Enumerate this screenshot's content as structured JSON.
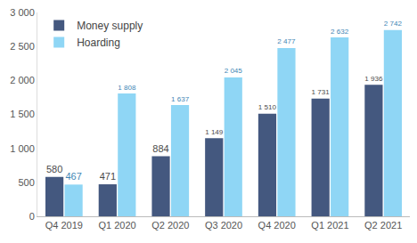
{
  "chart_data": {
    "type": "bar",
    "categories": [
      "Q4 2019",
      "Q1 2020",
      "Q2 2020",
      "Q3 2020",
      "Q4 2020",
      "Q1 2021",
      "Q2 2021"
    ],
    "series": [
      {
        "name": "Money supply",
        "color": "#44587f",
        "values": [
          580,
          471,
          884,
          1149,
          1510,
          1731,
          1936
        ],
        "value_labels": [
          "580",
          "471",
          "884",
          "1 149",
          "1 510",
          "1 731",
          "1 936"
        ]
      },
      {
        "name": "Hoarding",
        "color": "#8fd6f5",
        "values": [
          467,
          1808,
          1637,
          2045,
          2477,
          2632,
          2742
        ],
        "value_labels": [
          "467",
          "1 808",
          "1 637",
          "2 045",
          "2 477",
          "2 632",
          "2 742"
        ]
      }
    ],
    "ylim": [
      0,
      3000
    ],
    "yticks": [
      0,
      500,
      {
        "value": 1000,
        "label": "1 000"
      },
      {
        "value": 1500,
        "label": "1 500"
      },
      {
        "value": 2000,
        "label": "2 000"
      },
      {
        "value": 2500,
        "label": "2 500"
      },
      {
        "value": 3000,
        "label": "3 000"
      }
    ],
    "grid": false,
    "legend": "upper left",
    "data_labels": true
  }
}
